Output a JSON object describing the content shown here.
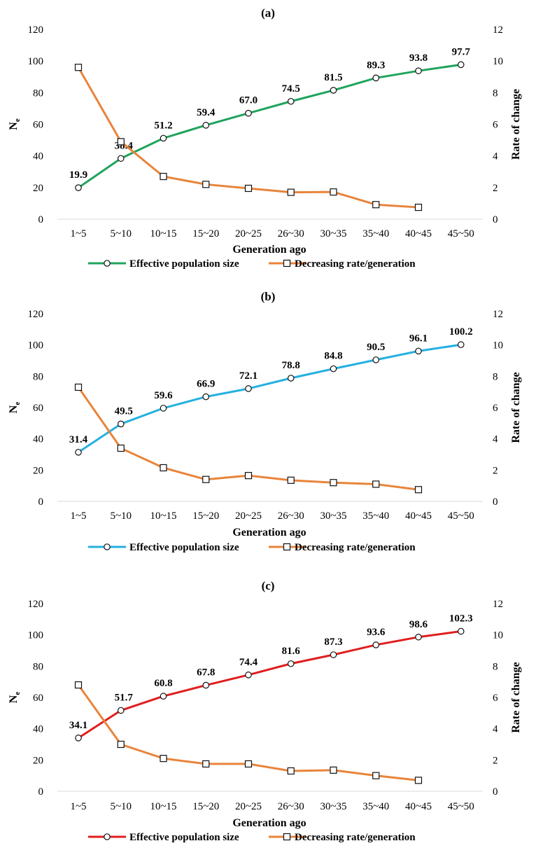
{
  "chart_data": [
    {
      "type": "line",
      "title": "(a)",
      "xlabel": "Generation ago",
      "ylabel": "Ne",
      "ylabel_main": "N",
      "ylabel_sub": "e",
      "y2label": "Rate of change",
      "categories": [
        "1~5",
        "5~10",
        "10~15",
        "15~20",
        "20~25",
        "26~30",
        "30~35",
        "35~40",
        "40~45",
        "45~50"
      ],
      "ylim": [
        0,
        120
      ],
      "y2lim": [
        0,
        12
      ],
      "yticks": [
        "0",
        "20",
        "40",
        "60",
        "80",
        "100",
        "120"
      ],
      "y2ticks": [
        "0",
        "2",
        "4",
        "6",
        "8",
        "10",
        "12"
      ],
      "grid": false,
      "legend_position": "bottom",
      "series": [
        {
          "name": "Effective population size",
          "axis": "left",
          "marker": "circle",
          "color": "#1FA45C",
          "values": [
            19.9,
            38.4,
            51.2,
            59.4,
            67.0,
            74.5,
            81.5,
            89.3,
            93.8,
            97.7
          ],
          "labels": [
            "19.9",
            "38.4",
            "51.2",
            "59.4",
            "67.0",
            "74.5",
            "81.5",
            "89.3",
            "93.8",
            "97.7"
          ]
        },
        {
          "name": "Decreasing rate/generation",
          "axis": "right",
          "marker": "square",
          "color": "#E8843A",
          "values": [
            9.6,
            4.9,
            2.7,
            2.2,
            1.95,
            1.7,
            1.72,
            0.92,
            0.75,
            null
          ]
        }
      ]
    },
    {
      "type": "line",
      "title": "(b)",
      "xlabel": "Generation ago",
      "ylabel": "Ne",
      "ylabel_main": "N",
      "ylabel_sub": "e",
      "y2label": "Rate of change",
      "categories": [
        "1~5",
        "5~10",
        "10~15",
        "15~20",
        "20~25",
        "26~30",
        "30~35",
        "35~40",
        "40~45",
        "45~50"
      ],
      "ylim": [
        0,
        120
      ],
      "y2lim": [
        0,
        12
      ],
      "yticks": [
        "0",
        "20",
        "40",
        "60",
        "80",
        "100",
        "120"
      ],
      "y2ticks": [
        "0",
        "2",
        "4",
        "6",
        "8",
        "10",
        "12"
      ],
      "grid": false,
      "legend_position": "bottom",
      "series": [
        {
          "name": "Effective population size",
          "axis": "left",
          "marker": "circle",
          "color": "#24B0E0",
          "values": [
            31.4,
            49.5,
            59.6,
            66.9,
            72.1,
            78.8,
            84.8,
            90.5,
            96.1,
            100.2
          ],
          "labels": [
            "31.4",
            "49.5",
            "59.6",
            "66.9",
            "72.1",
            "78.8",
            "84.8",
            "90.5",
            "96.1",
            "100.2"
          ]
        },
        {
          "name": "Decreasing rate/generation",
          "axis": "right",
          "marker": "square",
          "color": "#E8843A",
          "values": [
            7.3,
            3.4,
            2.15,
            1.4,
            1.65,
            1.35,
            1.2,
            1.1,
            0.75,
            null
          ]
        }
      ]
    },
    {
      "type": "line",
      "title": "(c)",
      "xlabel": "Generation ago",
      "ylabel": "Ne",
      "ylabel_main": "N",
      "ylabel_sub": "e",
      "y2label": "Rate of change",
      "categories": [
        "1~5",
        "5~10",
        "10~15",
        "15~20",
        "20~25",
        "26~30",
        "30~35",
        "35~40",
        "40~45",
        "45~50"
      ],
      "ylim": [
        0,
        120
      ],
      "y2lim": [
        0,
        12
      ],
      "yticks": [
        "0",
        "20",
        "40",
        "60",
        "80",
        "100",
        "120"
      ],
      "y2ticks": [
        "0",
        "2",
        "4",
        "6",
        "8",
        "10",
        "12"
      ],
      "grid": false,
      "legend_position": "bottom",
      "series": [
        {
          "name": "Effective population size",
          "axis": "left",
          "marker": "circle",
          "color": "#E01E1E",
          "values": [
            34.1,
            51.7,
            60.8,
            67.8,
            74.4,
            81.6,
            87.3,
            93.6,
            98.6,
            102.3
          ],
          "labels": [
            "34.1",
            "51.7",
            "60.8",
            "67.8",
            "74.4",
            "81.6",
            "87.3",
            "93.6",
            "98.6",
            "102.3"
          ]
        },
        {
          "name": "Decreasing rate/generation",
          "axis": "right",
          "marker": "square",
          "color": "#E8843A",
          "values": [
            6.8,
            3.0,
            2.1,
            1.75,
            1.75,
            1.3,
            1.35,
            1.0,
            0.7,
            null
          ]
        }
      ]
    }
  ]
}
